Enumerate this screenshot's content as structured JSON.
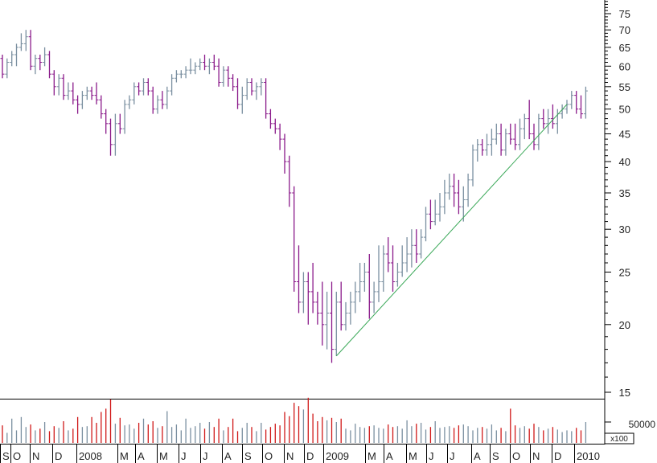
{
  "chart_data": {
    "type": "ohlc",
    "price_axis": {
      "scale": "log",
      "range": [
        13.5,
        82
      ],
      "ticks": [
        "15",
        "20",
        "25",
        "30",
        "35",
        "40",
        "45",
        "50",
        "55",
        "60",
        "65",
        "70",
        "75"
      ],
      "minor_ticks": [
        16,
        17,
        18,
        19,
        21,
        22,
        23,
        24,
        26,
        27,
        28,
        29,
        31,
        32,
        33,
        34,
        36,
        37,
        38,
        39,
        41,
        42,
        43,
        44,
        46,
        47,
        48,
        49,
        51,
        52,
        53,
        54,
        56,
        57,
        58,
        59,
        61,
        62,
        63,
        64,
        66,
        67,
        68,
        69,
        71,
        72,
        73,
        74,
        76,
        77,
        78,
        79,
        80
      ]
    },
    "volume_axis": {
      "tick_label": "50000",
      "unit_label": "x100",
      "range": [
        0,
        120000
      ]
    },
    "time_axis": {
      "labels": [
        "S",
        "O",
        "N",
        "D",
        "2008",
        "M",
        "A",
        "M",
        "J",
        "J",
        "A",
        "S",
        "O",
        "N",
        "D",
        "2009",
        "M",
        "A",
        "M",
        "J",
        "J",
        "A",
        "S",
        "O",
        "N",
        "D",
        "2010"
      ],
      "weeks": 125
    },
    "ohlc": [
      [
        62,
        63,
        57,
        58
      ],
      [
        58,
        62,
        57,
        61
      ],
      [
        61,
        64,
        60,
        63
      ],
      [
        63,
        66,
        60,
        65
      ],
      [
        65,
        69,
        64,
        66
      ],
      [
        66,
        70,
        64,
        68
      ],
      [
        68,
        70,
        59,
        60
      ],
      [
        60,
        63,
        58,
        62
      ],
      [
        62,
        63,
        59,
        61
      ],
      [
        61,
        65,
        60,
        63
      ],
      [
        63,
        64,
        57,
        58
      ],
      [
        58,
        59,
        53,
        55
      ],
      [
        55,
        58,
        53,
        57
      ],
      [
        57,
        58,
        52,
        53
      ],
      [
        53,
        56,
        52,
        54
      ],
      [
        54,
        56,
        51,
        52
      ],
      [
        52,
        53,
        49,
        51
      ],
      [
        51,
        54,
        50,
        53
      ],
      [
        53,
        55,
        52,
        54
      ],
      [
        54,
        55,
        52,
        53
      ],
      [
        53,
        56,
        51,
        52
      ],
      [
        52,
        53,
        48,
        49
      ],
      [
        49,
        50,
        45,
        47
      ],
      [
        47,
        48,
        41,
        43
      ],
      [
        43,
        49,
        41,
        47
      ],
      [
        47,
        49,
        45,
        46
      ],
      [
        46,
        52,
        45,
        51
      ],
      [
        51,
        53,
        50,
        52
      ],
      [
        52,
        56,
        51,
        55
      ],
      [
        55,
        56,
        53,
        54
      ],
      [
        54,
        57,
        53,
        56
      ],
      [
        56,
        57,
        53,
        54
      ],
      [
        54,
        55,
        49,
        50
      ],
      [
        50,
        53,
        49,
        52
      ],
      [
        52,
        54,
        50,
        51
      ],
      [
        51,
        55,
        50,
        54
      ],
      [
        54,
        58,
        53,
        57
      ],
      [
        57,
        59,
        56,
        58
      ],
      [
        58,
        59,
        57,
        58
      ],
      [
        58,
        60,
        57,
        59
      ],
      [
        59,
        62,
        58,
        59
      ],
      [
        59,
        61,
        58,
        60
      ],
      [
        60,
        62,
        59,
        61
      ],
      [
        61,
        63,
        59,
        60
      ],
      [
        60,
        62,
        58,
        61
      ],
      [
        61,
        63,
        59,
        60
      ],
      [
        60,
        62,
        55,
        56
      ],
      [
        56,
        60,
        55,
        59
      ],
      [
        59,
        60,
        55,
        57
      ],
      [
        57,
        58,
        54,
        55
      ],
      [
        55,
        57,
        50,
        51
      ],
      [
        51,
        55,
        49,
        53
      ],
      [
        53,
        57,
        52,
        56
      ],
      [
        56,
        57,
        53,
        54
      ],
      [
        54,
        56,
        52,
        55
      ],
      [
        55,
        57,
        53,
        56
      ],
      [
        56,
        57,
        48,
        49
      ],
      [
        49,
        50,
        46,
        47
      ],
      [
        47,
        48,
        45,
        46
      ],
      [
        46,
        47,
        42,
        44
      ],
      [
        44,
        45,
        38,
        40
      ],
      [
        40,
        41,
        33,
        35
      ],
      [
        35,
        36,
        23,
        24
      ],
      [
        24,
        28,
        21,
        22
      ],
      [
        22,
        25,
        21,
        24
      ],
      [
        24,
        25,
        20,
        23
      ],
      [
        23,
        26,
        21,
        22
      ],
      [
        22,
        23,
        20,
        21
      ],
      [
        21,
        24,
        18.3,
        20
      ],
      [
        20,
        23,
        18,
        21
      ],
      [
        21,
        24,
        17,
        18
      ],
      [
        18,
        23,
        17.5,
        22
      ],
      [
        22,
        24,
        19.5,
        20
      ],
      [
        20,
        22,
        19.5,
        21
      ],
      [
        21,
        23,
        20,
        22
      ],
      [
        22,
        24,
        21,
        23
      ],
      [
        23,
        26,
        22,
        24
      ],
      [
        24,
        26,
        23,
        25
      ],
      [
        25,
        27,
        20.5,
        22
      ],
      [
        22,
        24,
        21,
        23
      ],
      [
        23,
        28,
        22,
        24
      ],
      [
        24,
        28,
        23,
        27
      ],
      [
        27,
        29,
        25,
        26
      ],
      [
        26,
        28,
        23,
        24
      ],
      [
        24,
        26,
        23.5,
        25
      ],
      [
        25,
        28,
        24.5,
        26
      ],
      [
        26,
        29,
        25,
        27
      ],
      [
        27,
        30,
        25.5,
        28
      ],
      [
        28,
        30,
        26,
        27
      ],
      [
        27,
        30,
        26.5,
        29
      ],
      [
        29,
        33,
        28.5,
        32
      ],
      [
        32,
        34,
        30,
        31
      ],
      [
        31,
        34,
        30.5,
        32
      ],
      [
        32,
        35,
        31,
        33
      ],
      [
        33,
        37,
        32,
        35
      ],
      [
        35,
        38,
        34,
        36
      ],
      [
        36,
        38,
        33,
        35
      ],
      [
        35,
        37,
        32,
        33
      ],
      [
        33,
        36,
        31,
        34
      ],
      [
        34,
        38,
        33,
        37
      ],
      [
        37,
        43,
        36,
        42
      ],
      [
        42,
        44,
        40,
        43
      ],
      [
        43,
        44,
        41,
        42
      ],
      [
        42,
        45,
        41,
        43
      ],
      [
        43,
        46,
        41,
        44
      ],
      [
        44,
        47,
        43,
        45
      ],
      [
        45,
        47,
        41,
        42
      ],
      [
        42,
        46,
        41,
        45
      ],
      [
        45,
        47,
        43,
        44
      ],
      [
        44,
        47,
        42,
        43
      ],
      [
        43,
        48,
        42,
        46
      ],
      [
        46,
        49,
        44,
        48
      ],
      [
        48,
        52,
        44,
        45
      ],
      [
        45,
        47,
        42,
        43
      ],
      [
        43,
        49,
        42,
        48
      ],
      [
        48,
        50,
        46,
        47
      ],
      [
        47,
        50,
        45,
        48
      ],
      [
        48,
        51,
        46,
        47
      ],
      [
        47,
        50,
        45,
        49
      ],
      [
        49,
        51,
        48,
        50
      ],
      [
        50,
        52,
        49,
        51
      ],
      [
        51,
        54,
        50,
        53
      ],
      [
        53,
        54,
        49,
        50
      ],
      [
        50,
        53,
        48,
        49
      ],
      [
        49,
        55,
        48,
        54
      ]
    ],
    "volume": [
      42000,
      24000,
      58000,
      30000,
      62000,
      38000,
      44000,
      30000,
      34000,
      50000,
      28000,
      40000,
      36000,
      52000,
      30000,
      34000,
      62000,
      38000,
      40000,
      62000,
      48000,
      74000,
      82000,
      104000,
      46000,
      60000,
      42000,
      44000,
      34000,
      48000,
      58000,
      44000,
      52000,
      36000,
      40000,
      76000,
      38000,
      44000,
      30000,
      58000,
      36000,
      40000,
      48000,
      34000,
      50000,
      38000,
      58000,
      30000,
      38000,
      58000,
      28000,
      36000,
      48000,
      38000,
      28000,
      48000,
      32000,
      38000,
      46000,
      42000,
      74000,
      64000,
      96000,
      88000,
      80000,
      108000,
      70000,
      52000,
      62000,
      54000,
      60000,
      50000,
      58000,
      34000,
      30000,
      46000,
      38000,
      36000,
      40000,
      42000,
      36000,
      34000,
      44000,
      38000,
      40000,
      34000,
      54000,
      40000,
      46000,
      48000,
      32000,
      38000,
      52000,
      36000,
      38000,
      40000,
      36000,
      42000,
      44000,
      40000,
      30000,
      36000,
      38000,
      34000,
      44000,
      30000,
      36000,
      28000,
      82000,
      42000,
      36000,
      40000,
      34000,
      46000,
      38000,
      30000,
      34000,
      38000,
      32000,
      26000,
      30000,
      28000,
      36000,
      30000,
      50000
    ],
    "trendline": {
      "from_week": 71,
      "from_price": 17.5,
      "to_week": 120,
      "to_price": 51
    }
  }
}
